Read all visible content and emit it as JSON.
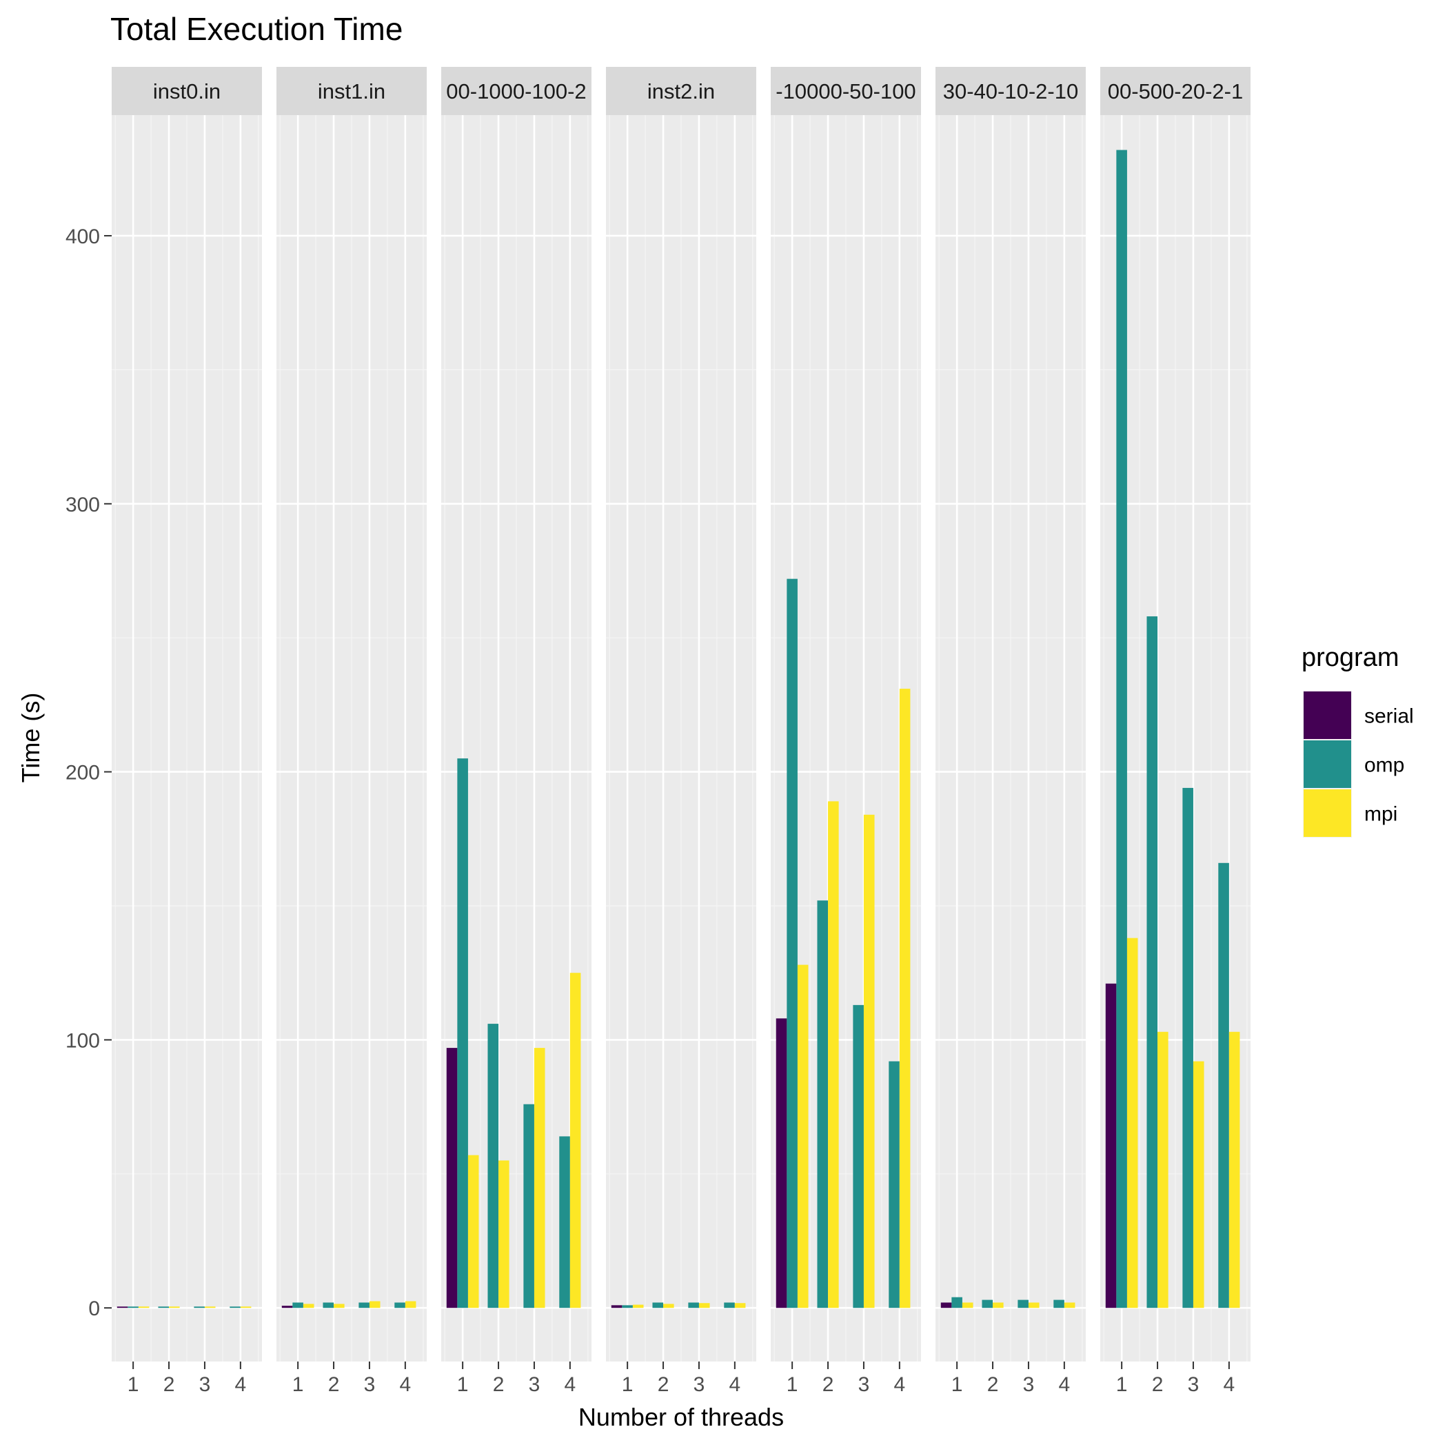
{
  "chart_data": {
    "type": "bar",
    "title": "Total Execution Time",
    "xlabel": "Number of threads",
    "ylabel": "Time (s)",
    "ylim": [
      -20,
      445
    ],
    "yticks": [
      0,
      100,
      200,
      300,
      400
    ],
    "categories": [
      "1",
      "2",
      "3",
      "4"
    ],
    "legend": {
      "title": "program",
      "position": "right",
      "entries": [
        {
          "name": "serial",
          "color": "#440154"
        },
        {
          "name": "omp",
          "color": "#21908C"
        },
        {
          "name": "mpi",
          "color": "#FDE725"
        }
      ]
    },
    "facets": [
      {
        "label": "inst0.in",
        "series": [
          {
            "name": "serial",
            "values": [
              0.5,
              null,
              null,
              null
            ]
          },
          {
            "name": "omp",
            "values": [
              0.5,
              0.5,
              0.5,
              0.5
            ]
          },
          {
            "name": "mpi",
            "values": [
              0.5,
              0.5,
              0.5,
              0.5
            ]
          }
        ]
      },
      {
        "label": "inst1.in",
        "series": [
          {
            "name": "serial",
            "values": [
              0.8,
              null,
              null,
              null
            ]
          },
          {
            "name": "omp",
            "values": [
              2,
              2,
              2,
              2
            ]
          },
          {
            "name": "mpi",
            "values": [
              1.5,
              1.5,
              2.5,
              2.5
            ]
          }
        ]
      },
      {
        "label": "00-1000-100-2",
        "series": [
          {
            "name": "serial",
            "values": [
              97,
              null,
              null,
              null
            ]
          },
          {
            "name": "omp",
            "values": [
              205,
              106,
              76,
              64
            ]
          },
          {
            "name": "mpi",
            "values": [
              57,
              55,
              97,
              125
            ]
          }
        ]
      },
      {
        "label": "inst2.in",
        "series": [
          {
            "name": "serial",
            "values": [
              1,
              null,
              null,
              null
            ]
          },
          {
            "name": "omp",
            "values": [
              1,
              2,
              2,
              2
            ]
          },
          {
            "name": "mpi",
            "values": [
              1.2,
              1.5,
              1.8,
              1.8
            ]
          }
        ]
      },
      {
        "label": "-10000-50-100",
        "series": [
          {
            "name": "serial",
            "values": [
              108,
              null,
              null,
              null
            ]
          },
          {
            "name": "omp",
            "values": [
              272,
              152,
              113,
              92
            ]
          },
          {
            "name": "mpi",
            "values": [
              128,
              189,
              184,
              231
            ]
          }
        ]
      },
      {
        "label": "30-40-10-2-10",
        "series": [
          {
            "name": "serial",
            "values": [
              2,
              null,
              null,
              null
            ]
          },
          {
            "name": "omp",
            "values": [
              4,
              3,
              3,
              3
            ]
          },
          {
            "name": "mpi",
            "values": [
              2,
              2,
              2,
              2
            ]
          }
        ]
      },
      {
        "label": "00-500-20-2-1",
        "series": [
          {
            "name": "serial",
            "values": [
              121,
              null,
              null,
              null
            ]
          },
          {
            "name": "omp",
            "values": [
              432,
              258,
              194,
              166
            ]
          },
          {
            "name": "mpi",
            "values": [
              138,
              103,
              92,
              103
            ]
          }
        ]
      }
    ]
  }
}
